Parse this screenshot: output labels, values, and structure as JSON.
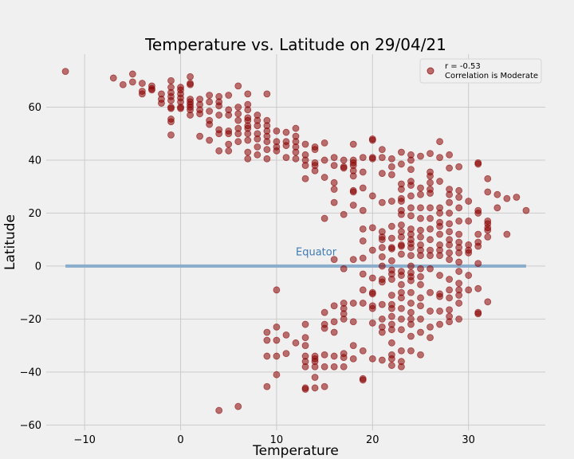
{
  "chart_data": {
    "type": "scatter",
    "title": "Temperature vs. Latitude on 29/04/21",
    "xlabel": "Temperature",
    "ylabel": "Latitude",
    "xlim": [
      -14,
      38
    ],
    "ylim": [
      -62,
      80
    ],
    "xticks": [
      -10,
      0,
      10,
      20,
      30
    ],
    "yticks": [
      -60,
      -40,
      -20,
      0,
      20,
      40,
      60
    ],
    "grid": true,
    "legend_position": "top-right",
    "legend": [
      "r = -0.53",
      "Correlation is Moderate"
    ],
    "point_color": "#8b0000",
    "point_opacity": 0.55,
    "reference_line": {
      "label": "Equator",
      "y": 0,
      "x_start": -12,
      "x_end": 36,
      "color": "#8aadcb"
    },
    "annotation": {
      "text": "Equator",
      "x": 12,
      "y": 4,
      "color": "#3f7bb5"
    },
    "points": [
      [
        -12,
        73.5
      ],
      [
        -7,
        71
      ],
      [
        -6,
        68.5
      ],
      [
        -5,
        72.5
      ],
      [
        -5,
        69.5
      ],
      [
        -4,
        69
      ],
      [
        -4,
        66
      ],
      [
        -4,
        65
      ],
      [
        -3,
        68
      ],
      [
        -3,
        67
      ],
      [
        -3,
        66.5
      ],
      [
        -2,
        65
      ],
      [
        -2,
        63
      ],
      [
        -2,
        61.5
      ],
      [
        -1,
        70
      ],
      [
        -1,
        67.5
      ],
      [
        -1,
        65.5
      ],
      [
        -1,
        64
      ],
      [
        -1,
        62.5
      ],
      [
        -1,
        60
      ],
      [
        -1,
        59.5
      ],
      [
        -1,
        55.5
      ],
      [
        -1,
        54.5
      ],
      [
        -1,
        49.5
      ],
      [
        0,
        67.5
      ],
      [
        0,
        66.5
      ],
      [
        0,
        65
      ],
      [
        0,
        63.5
      ],
      [
        0,
        62
      ],
      [
        0,
        60
      ],
      [
        0,
        59.5
      ],
      [
        1,
        71.5
      ],
      [
        1,
        69
      ],
      [
        1,
        68.5
      ],
      [
        1,
        63
      ],
      [
        1,
        62
      ],
      [
        1,
        61
      ],
      [
        1,
        60
      ],
      [
        1,
        59
      ],
      [
        1,
        57
      ],
      [
        2,
        63
      ],
      [
        2,
        61
      ],
      [
        2,
        59
      ],
      [
        2,
        57.5
      ],
      [
        2,
        49
      ],
      [
        3,
        64.5
      ],
      [
        3,
        62
      ],
      [
        3,
        58.5
      ],
      [
        3,
        55
      ],
      [
        3,
        53.5
      ],
      [
        3,
        47.5
      ],
      [
        4,
        64
      ],
      [
        4,
        62
      ],
      [
        4,
        60.5
      ],
      [
        4,
        57
      ],
      [
        4,
        51.5
      ],
      [
        4,
        50
      ],
      [
        4,
        43.5
      ],
      [
        4,
        -54.5
      ],
      [
        5,
        64.5
      ],
      [
        5,
        59
      ],
      [
        5,
        57
      ],
      [
        5,
        51
      ],
      [
        5,
        50
      ],
      [
        5,
        46
      ],
      [
        5,
        43.5
      ],
      [
        6,
        68
      ],
      [
        6,
        60
      ],
      [
        6,
        57.5
      ],
      [
        6,
        55
      ],
      [
        6,
        52
      ],
      [
        6,
        50
      ],
      [
        6,
        47
      ],
      [
        6,
        -53
      ],
      [
        7,
        65
      ],
      [
        7,
        61
      ],
      [
        7,
        59
      ],
      [
        7,
        56
      ],
      [
        7,
        55
      ],
      [
        7,
        53
      ],
      [
        7,
        52
      ],
      [
        7,
        50
      ],
      [
        7,
        47.5
      ],
      [
        7,
        43
      ],
      [
        7,
        40.5
      ],
      [
        8,
        57
      ],
      [
        8,
        55
      ],
      [
        8,
        53
      ],
      [
        8,
        50
      ],
      [
        8,
        48
      ],
      [
        8,
        45
      ],
      [
        8,
        42
      ],
      [
        9,
        65
      ],
      [
        9,
        55
      ],
      [
        9,
        53
      ],
      [
        9,
        51
      ],
      [
        9,
        49
      ],
      [
        9,
        47
      ],
      [
        9,
        44
      ],
      [
        9,
        40.5
      ],
      [
        9,
        -25
      ],
      [
        9,
        -28
      ],
      [
        9,
        -34
      ],
      [
        9,
        -45.5
      ],
      [
        10,
        51
      ],
      [
        10,
        47
      ],
      [
        10,
        45
      ],
      [
        10,
        43.5
      ],
      [
        10,
        -9
      ],
      [
        10,
        -23
      ],
      [
        10,
        -28
      ],
      [
        10,
        -34
      ],
      [
        10,
        -41
      ],
      [
        11,
        50.5
      ],
      [
        11,
        47
      ],
      [
        11,
        45.5
      ],
      [
        11,
        41
      ],
      [
        11,
        -26
      ],
      [
        11,
        -33
      ],
      [
        12,
        52
      ],
      [
        12,
        49
      ],
      [
        12,
        47
      ],
      [
        12,
        45
      ],
      [
        12,
        43
      ],
      [
        12,
        40.5
      ],
      [
        12,
        -29
      ],
      [
        13,
        46
      ],
      [
        13,
        42
      ],
      [
        13,
        40
      ],
      [
        13,
        38
      ],
      [
        13,
        33
      ],
      [
        13,
        -22
      ],
      [
        13,
        -27
      ],
      [
        13,
        -30
      ],
      [
        13,
        -34
      ],
      [
        13,
        -36
      ],
      [
        13,
        -38
      ],
      [
        13,
        -46
      ],
      [
        13,
        -46.5
      ],
      [
        14,
        45
      ],
      [
        14,
        44
      ],
      [
        14,
        39
      ],
      [
        14,
        38
      ],
      [
        14,
        36
      ],
      [
        14,
        -34
      ],
      [
        14,
        -35
      ],
      [
        14,
        -36
      ],
      [
        14,
        -38
      ],
      [
        14,
        -42
      ],
      [
        14,
        -46
      ],
      [
        15,
        46.5
      ],
      [
        15,
        40
      ],
      [
        15,
        33.5
      ],
      [
        15,
        18
      ],
      [
        15,
        -17.5
      ],
      [
        15,
        -22
      ],
      [
        15,
        -23.5
      ],
      [
        15,
        -33.5
      ],
      [
        15,
        -38
      ],
      [
        15,
        -45.5
      ],
      [
        16,
        41
      ],
      [
        16,
        38
      ],
      [
        16,
        31.5
      ],
      [
        16,
        29
      ],
      [
        16,
        24
      ],
      [
        16,
        2.5
      ],
      [
        16,
        -15
      ],
      [
        16,
        -21
      ],
      [
        16,
        -25
      ],
      [
        16,
        -34
      ],
      [
        16,
        -38
      ],
      [
        17,
        40
      ],
      [
        17,
        37
      ],
      [
        17,
        37.5
      ],
      [
        17,
        19.5
      ],
      [
        17,
        -1
      ],
      [
        17,
        -14
      ],
      [
        17,
        -16
      ],
      [
        17,
        -18
      ],
      [
        17,
        -20
      ],
      [
        17,
        -33
      ],
      [
        17,
        -34.5
      ],
      [
        17,
        -38
      ],
      [
        18,
        46
      ],
      [
        18,
        40
      ],
      [
        18,
        39
      ],
      [
        18,
        38
      ],
      [
        18,
        36
      ],
      [
        18,
        34
      ],
      [
        18,
        28.5
      ],
      [
        18,
        28
      ],
      [
        18,
        23
      ],
      [
        18,
        2.5
      ],
      [
        18,
        -14
      ],
      [
        18,
        -21
      ],
      [
        18,
        -30
      ],
      [
        18,
        -35
      ],
      [
        19,
        41
      ],
      [
        19,
        35.5
      ],
      [
        19,
        29.5
      ],
      [
        19,
        21
      ],
      [
        19,
        14
      ],
      [
        19,
        9.5
      ],
      [
        19,
        3
      ],
      [
        19,
        -3
      ],
      [
        19,
        -9
      ],
      [
        19,
        -14
      ],
      [
        19,
        -32
      ],
      [
        19,
        -42.5
      ],
      [
        19,
        -43
      ],
      [
        20,
        48
      ],
      [
        20,
        47.5
      ],
      [
        20,
        40.5
      ],
      [
        20,
        41
      ],
      [
        20,
        26.5
      ],
      [
        20,
        14.5
      ],
      [
        20,
        6
      ],
      [
        20,
        -4.5
      ],
      [
        20,
        -10
      ],
      [
        20,
        -10.5
      ],
      [
        20,
        -15
      ],
      [
        20,
        -16
      ],
      [
        20,
        -21.5
      ],
      [
        20,
        -35
      ],
      [
        21,
        44
      ],
      [
        21,
        41
      ],
      [
        21,
        35
      ],
      [
        21,
        24
      ],
      [
        21,
        13
      ],
      [
        21,
        11
      ],
      [
        21,
        10
      ],
      [
        21,
        7
      ],
      [
        21,
        3.5
      ],
      [
        21,
        0
      ],
      [
        21,
        -5
      ],
      [
        21,
        -6
      ],
      [
        21,
        -14.5
      ],
      [
        21,
        -20
      ],
      [
        21,
        -23
      ],
      [
        21,
        -25
      ],
      [
        21,
        -35.5
      ],
      [
        22,
        40.5
      ],
      [
        22,
        37.5
      ],
      [
        22,
        34.5
      ],
      [
        22,
        24.5
      ],
      [
        22,
        15
      ],
      [
        22,
        10.5
      ],
      [
        22,
        7
      ],
      [
        22,
        6.5
      ],
      [
        22,
        2
      ],
      [
        22,
        -1.5
      ],
      [
        22,
        -3
      ],
      [
        22,
        -5
      ],
      [
        22,
        -11
      ],
      [
        22,
        -14.5
      ],
      [
        22,
        -16
      ],
      [
        22,
        -19
      ],
      [
        22,
        -22
      ],
      [
        22,
        -24
      ],
      [
        22,
        -29
      ],
      [
        22,
        -33.5
      ],
      [
        22,
        -35
      ],
      [
        22,
        -37.5
      ],
      [
        23,
        43
      ],
      [
        23,
        38.5
      ],
      [
        23,
        31
      ],
      [
        23,
        29
      ],
      [
        23,
        25.5
      ],
      [
        23,
        24.5
      ],
      [
        23,
        21
      ],
      [
        23,
        19.5
      ],
      [
        23,
        15.5
      ],
      [
        23,
        13
      ],
      [
        23,
        11
      ],
      [
        23,
        8
      ],
      [
        23,
        7.5
      ],
      [
        23,
        4.5
      ],
      [
        23,
        -2
      ],
      [
        23,
        -3.5
      ],
      [
        23,
        -7
      ],
      [
        23,
        -10
      ],
      [
        23,
        -12
      ],
      [
        23,
        -16
      ],
      [
        23,
        -20
      ],
      [
        23,
        -24
      ],
      [
        23,
        -32
      ],
      [
        23,
        -36
      ],
      [
        23,
        -38
      ],
      [
        24,
        42
      ],
      [
        24,
        40
      ],
      [
        24,
        36.5
      ],
      [
        24,
        32
      ],
      [
        24,
        30.5
      ],
      [
        24,
        26.5
      ],
      [
        24,
        22
      ],
      [
        24,
        19
      ],
      [
        24,
        14
      ],
      [
        24,
        12
      ],
      [
        24,
        10
      ],
      [
        24,
        8.5
      ],
      [
        24,
        7
      ],
      [
        24,
        4
      ],
      [
        24,
        0
      ],
      [
        24,
        -2.5
      ],
      [
        24,
        -4
      ],
      [
        24,
        -5.5
      ],
      [
        24,
        -10
      ],
      [
        24,
        -14
      ],
      [
        24,
        -17.5
      ],
      [
        24,
        -20
      ],
      [
        24,
        -22
      ],
      [
        24,
        -26.5
      ],
      [
        24,
        -32
      ],
      [
        25,
        41.5
      ],
      [
        25,
        29.5
      ],
      [
        25,
        27
      ],
      [
        25,
        22
      ],
      [
        25,
        18
      ],
      [
        25,
        13.5
      ],
      [
        25,
        11
      ],
      [
        25,
        8
      ],
      [
        25,
        6
      ],
      [
        25,
        4
      ],
      [
        25,
        -1
      ],
      [
        25,
        -4
      ],
      [
        25,
        -7
      ],
      [
        25,
        -12
      ],
      [
        25,
        -15
      ],
      [
        25,
        -20
      ],
      [
        25,
        -25
      ],
      [
        25,
        -33.5
      ],
      [
        26,
        42.5
      ],
      [
        26,
        35.5
      ],
      [
        26,
        34
      ],
      [
        26,
        31.5
      ],
      [
        26,
        29
      ],
      [
        26,
        27.5
      ],
      [
        26,
        22
      ],
      [
        26,
        18
      ],
      [
        26,
        14
      ],
      [
        26,
        10
      ],
      [
        26,
        6
      ],
      [
        26,
        4
      ],
      [
        26,
        -1
      ],
      [
        26,
        -10
      ],
      [
        26,
        -17
      ],
      [
        26,
        -23
      ],
      [
        26,
        -27
      ],
      [
        27,
        47
      ],
      [
        27,
        41
      ],
      [
        27,
        32
      ],
      [
        27,
        22
      ],
      [
        27,
        20
      ],
      [
        27,
        16.5
      ],
      [
        27,
        15
      ],
      [
        27,
        12
      ],
      [
        27,
        8
      ],
      [
        27,
        6
      ],
      [
        27,
        4
      ],
      [
        27,
        -3.5
      ],
      [
        27,
        -10.5
      ],
      [
        27,
        -11.5
      ],
      [
        27,
        -17
      ],
      [
        27,
        -22
      ],
      [
        28,
        42
      ],
      [
        28,
        37
      ],
      [
        28,
        29
      ],
      [
        28,
        27
      ],
      [
        28,
        24
      ],
      [
        28,
        20
      ],
      [
        28,
        16
      ],
      [
        28,
        13
      ],
      [
        28,
        10
      ],
      [
        28,
        8
      ],
      [
        28,
        5
      ],
      [
        28,
        2.5
      ],
      [
        28,
        -5
      ],
      [
        28,
        -9
      ],
      [
        28,
        -12
      ],
      [
        28,
        -16.5
      ],
      [
        28,
        -19
      ],
      [
        28,
        -21
      ],
      [
        29,
        37.5
      ],
      [
        29,
        28.5
      ],
      [
        29,
        26
      ],
      [
        29,
        22
      ],
      [
        29,
        17
      ],
      [
        29,
        12
      ],
      [
        29,
        9
      ],
      [
        29,
        7
      ],
      [
        29,
        5
      ],
      [
        29,
        1.5
      ],
      [
        29,
        -2
      ],
      [
        29,
        -6.5
      ],
      [
        29,
        -9
      ],
      [
        29,
        -11
      ],
      [
        29,
        -14
      ],
      [
        29,
        -20
      ],
      [
        30,
        24.5
      ],
      [
        30,
        17
      ],
      [
        30,
        8
      ],
      [
        30,
        6
      ],
      [
        30,
        5
      ],
      [
        30,
        -3.5
      ],
      [
        30,
        -9
      ],
      [
        31,
        39
      ],
      [
        31,
        38.5
      ],
      [
        31,
        21
      ],
      [
        31,
        20
      ],
      [
        31,
        12
      ],
      [
        31,
        9
      ],
      [
        31,
        7.5
      ],
      [
        31,
        1
      ],
      [
        31,
        -8.5
      ],
      [
        31,
        -17.5
      ],
      [
        31,
        -18
      ],
      [
        32,
        33
      ],
      [
        32,
        28
      ],
      [
        32,
        17
      ],
      [
        32,
        16
      ],
      [
        32,
        14.5
      ],
      [
        32,
        13.5
      ],
      [
        32,
        11
      ],
      [
        32,
        -13.5
      ],
      [
        33,
        27
      ],
      [
        33,
        22
      ],
      [
        34,
        25.5
      ],
      [
        34,
        12
      ],
      [
        35,
        26
      ],
      [
        36,
        21
      ]
    ]
  }
}
